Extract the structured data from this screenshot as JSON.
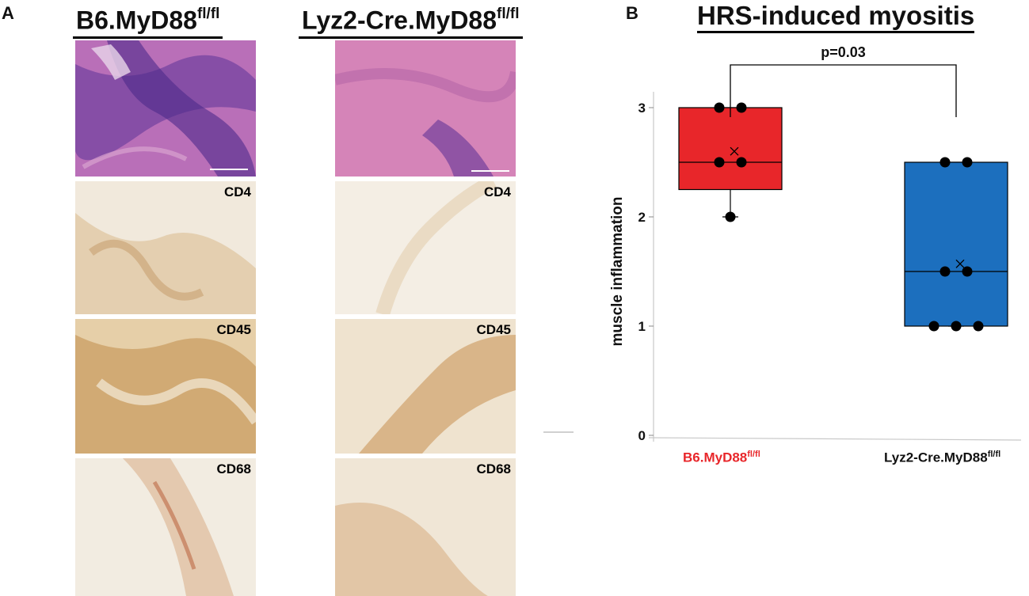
{
  "panels": {
    "a_label": "A",
    "b_label": "B"
  },
  "histology": {
    "columns": [
      {
        "title_main": "B6.MyD88",
        "title_sup": "fl/fl"
      },
      {
        "title_main": "Lyz2-Cre.MyD88",
        "title_sup": "fl/fl"
      }
    ],
    "rows": [
      {
        "stain": ""
      },
      {
        "stain": "CD4"
      },
      {
        "stain": "CD45"
      },
      {
        "stain": "CD68"
      }
    ]
  },
  "chart_data": {
    "type": "box",
    "title": "HRS-induced myositis",
    "ylabel": "muscle inflammation",
    "xlabel": "",
    "ylim": [
      0,
      3
    ],
    "yticks": [
      0,
      1,
      2,
      3
    ],
    "categories": [
      {
        "main": "B6.MyD88",
        "sup": "fl/fl"
      },
      {
        "main": "Lyz2-Cre.MyD88",
        "sup": "fl/fl"
      }
    ],
    "series": [
      {
        "points": [
          3,
          3,
          2.5,
          2.5,
          2
        ],
        "min": 2,
        "q1": 2.25,
        "median": 2.5,
        "q3": 3,
        "max": 3,
        "mean": 2.6,
        "color": "#e8262a"
      },
      {
        "points": [
          2.5,
          2.5,
          1.5,
          1.5,
          1,
          1,
          1
        ],
        "min": 1,
        "q1": 1,
        "median": 1.5,
        "q3": 2.5,
        "max": 2.5,
        "mean": 1.57,
        "color": "#1c6fbe"
      }
    ],
    "category_colors": [
      "#e8262a",
      "#111111"
    ],
    "significance": {
      "label": "p=0.03",
      "between": [
        0,
        1
      ]
    },
    "grid": false
  }
}
